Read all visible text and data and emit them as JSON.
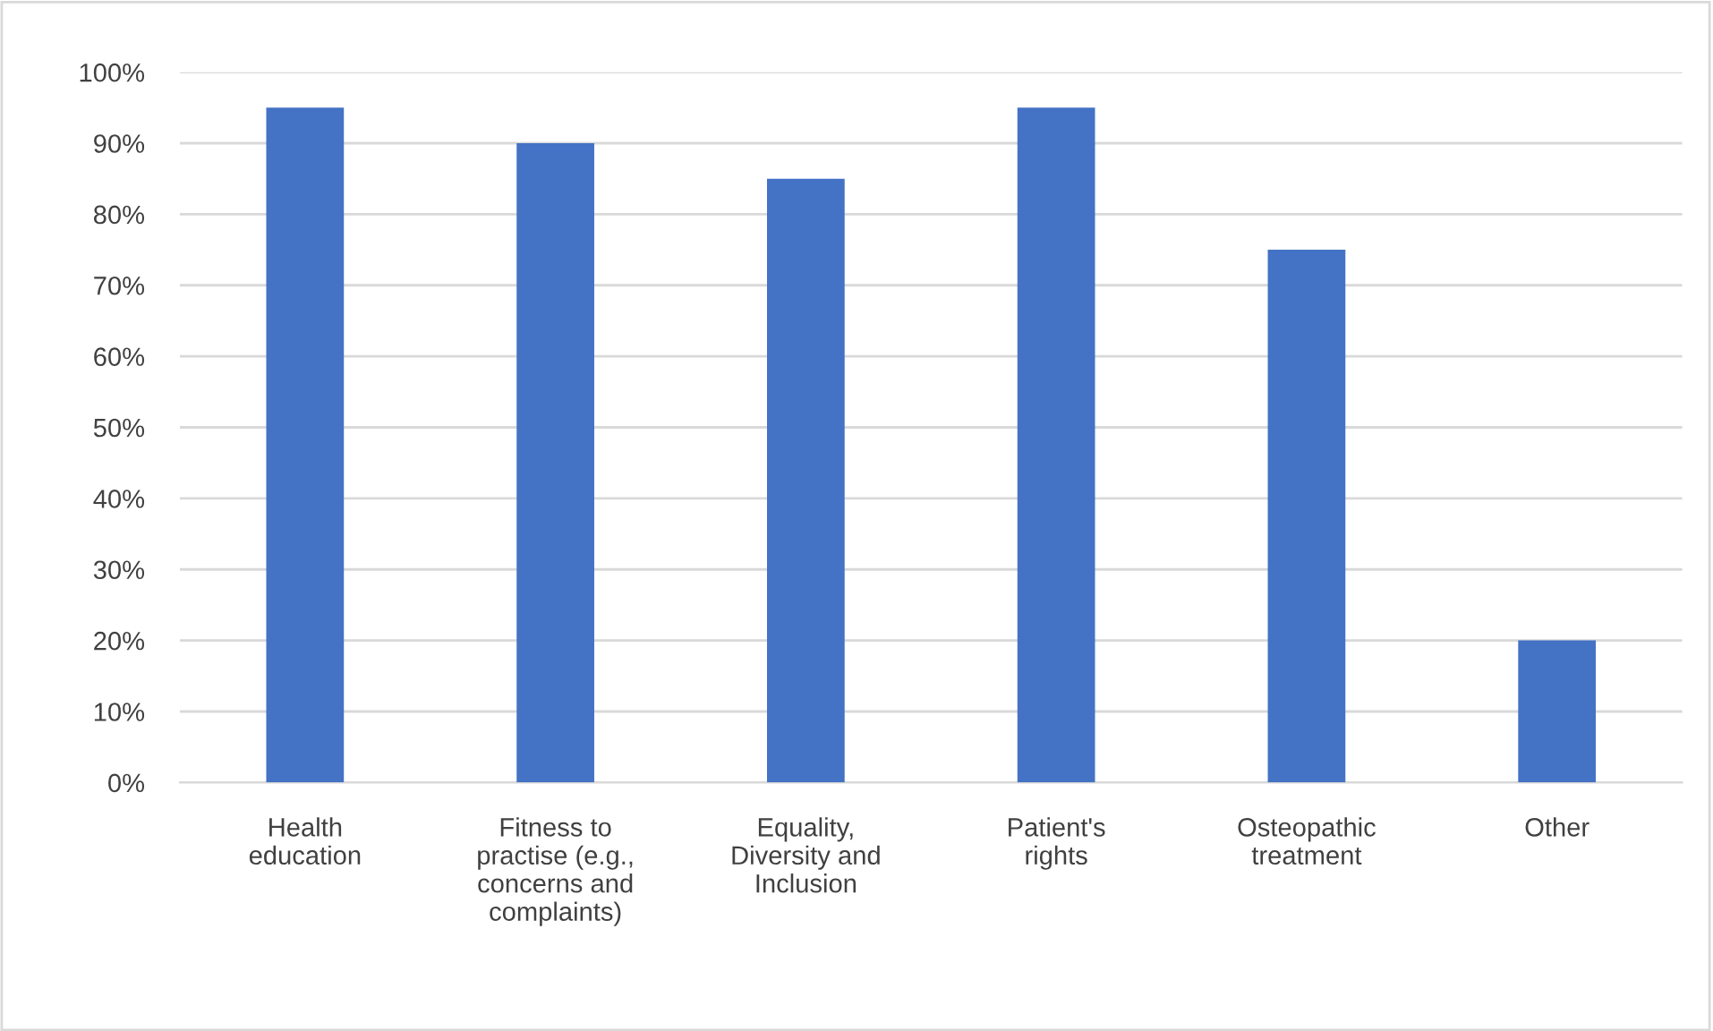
{
  "chart_data": {
    "type": "bar",
    "categories": [
      "Health\neducation",
      "Fitness to\npractise (e.g.,\nconcerns and\ncomplaints)",
      "Equality,\nDiversity and\nInclusion",
      "Patient's\nrights",
      "Osteopathic\ntreatment",
      "Other"
    ],
    "values": [
      95,
      90,
      85,
      95,
      75,
      20
    ],
    "color": "#4472c4",
    "ylim": [
      0,
      100
    ],
    "yticks": [
      {
        "value": 0,
        "label": "0%"
      },
      {
        "value": 10,
        "label": "10%"
      },
      {
        "value": 20,
        "label": "20%"
      },
      {
        "value": 30,
        "label": "30%"
      },
      {
        "value": 40,
        "label": "40%"
      },
      {
        "value": 50,
        "label": "50%"
      },
      {
        "value": 60,
        "label": "60%"
      },
      {
        "value": 70,
        "label": "70%"
      },
      {
        "value": 80,
        "label": "80%"
      },
      {
        "value": 90,
        "label": "90%"
      },
      {
        "value": 100,
        "label": "100%"
      }
    ],
    "grid": "y",
    "legend": false
  }
}
